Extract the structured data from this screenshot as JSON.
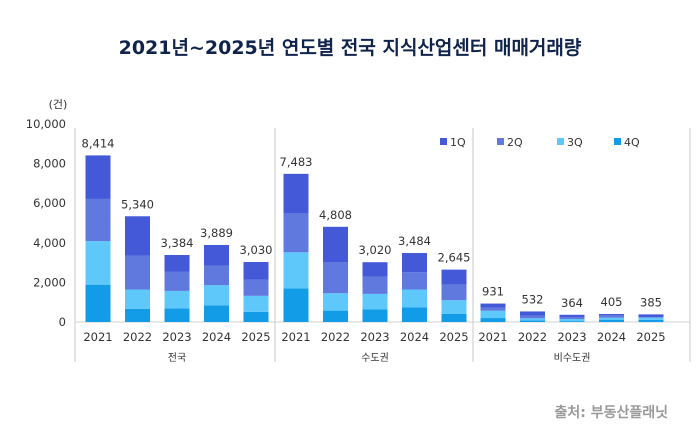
{
  "chart_data": {
    "type": "bar",
    "stacked": true,
    "title": "2021년~2025년 연도별 전국 지식산업센터 매매거래량",
    "ylabel": "(건)",
    "ylim": [
      0,
      10000
    ],
    "yticks": [
      "0",
      "2,000",
      "4,000",
      "6,000",
      "8,000",
      "10,000"
    ],
    "grid": false,
    "legend_position": "top-right",
    "series_order_bottom_to_top": [
      "4Q",
      "3Q",
      "2Q",
      "1Q"
    ],
    "legend": [
      "1Q",
      "2Q",
      "3Q",
      "4Q"
    ],
    "colors": {
      "1Q": "#4459d8",
      "2Q": "#6079de",
      "3Q": "#5fc8fb",
      "4Q": "#129be6"
    },
    "groups": [
      {
        "name": "전국",
        "categories": [
          "2021",
          "2022",
          "2023",
          "2024",
          "2025"
        ],
        "totals": [
          "8,414",
          "5,340",
          "3,384",
          "3,889",
          "3,030"
        ],
        "series": [
          {
            "name": "1Q",
            "values": [
              2198,
              1980,
              834,
              1034,
              900
            ]
          },
          {
            "name": "2Q",
            "values": [
              2130,
              1720,
              980,
              995,
              810
            ]
          },
          {
            "name": "3Q",
            "values": [
              2200,
              980,
              880,
              1015,
              810
            ]
          },
          {
            "name": "4Q",
            "values": [
              1886,
              660,
              690,
              845,
              510
            ]
          }
        ]
      },
      {
        "name": "수도권",
        "categories": [
          "2021",
          "2022",
          "2023",
          "2024",
          "2025"
        ],
        "totals": [
          "7,483",
          "4,808",
          "3,020",
          "3,484",
          "2,645"
        ],
        "series": [
          {
            "name": "1Q",
            "values": [
              1998,
              1778,
              720,
              964,
              765
            ]
          },
          {
            "name": "2Q",
            "values": [
              1965,
              1575,
              880,
              880,
              780
            ]
          },
          {
            "name": "3Q",
            "values": [
              1830,
              880,
              775,
              895,
              695
            ]
          },
          {
            "name": "4Q",
            "values": [
              1690,
              575,
              645,
              745,
              405
            ]
          }
        ]
      },
      {
        "name": "비수도권",
        "categories": [
          "2021",
          "2022",
          "2023",
          "2024",
          "2025"
        ],
        "totals": [
          "931",
          "532",
          "364",
          "405",
          "385"
        ],
        "series": [
          {
            "name": "1Q",
            "values": [
              196,
              202,
              114,
              70,
              135
            ]
          },
          {
            "name": "2Q",
            "values": [
              165,
              145,
              100,
              115,
              30
            ]
          },
          {
            "name": "3Q",
            "values": [
              370,
              100,
              105,
              120,
              115
            ]
          },
          {
            "name": "4Q",
            "values": [
              200,
              85,
              45,
              100,
              105
            ]
          }
        ]
      }
    ]
  },
  "source": "출처: 부동산플래닛"
}
